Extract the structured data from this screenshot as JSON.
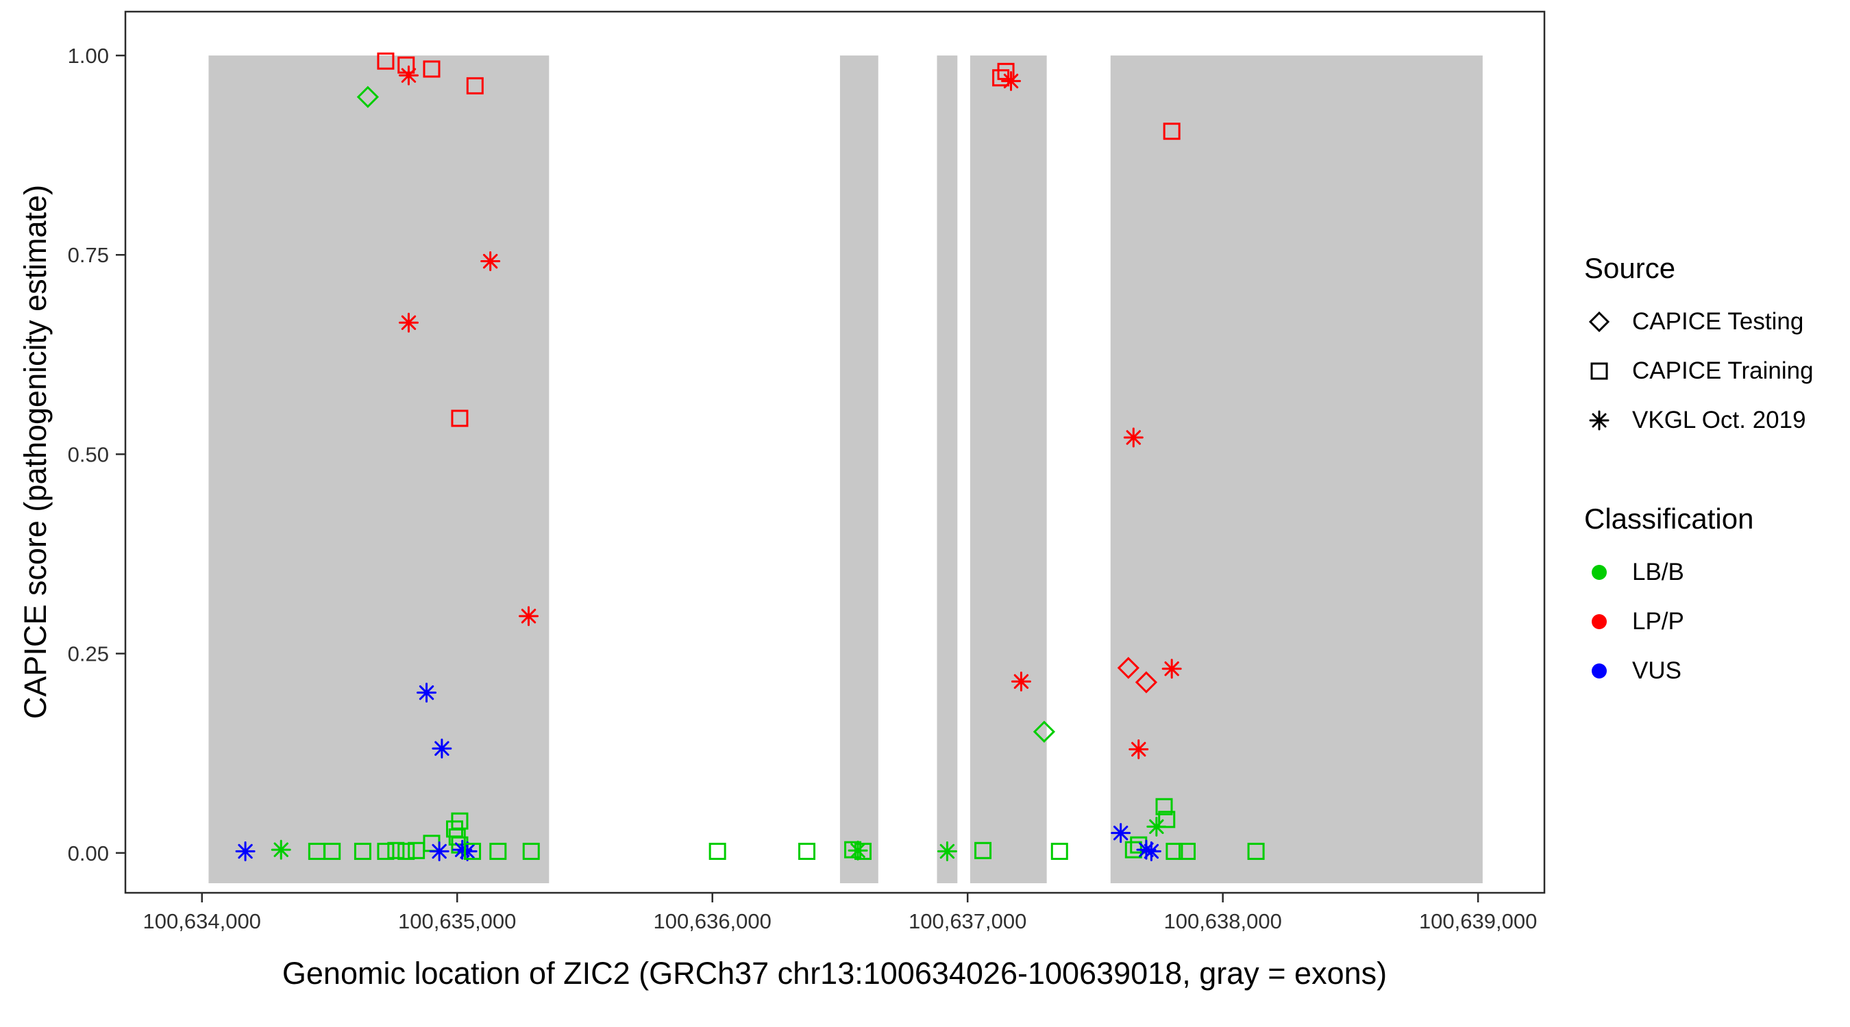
{
  "figure": {
    "x_axis_title": "Genomic location of ZIC2 (GRCh37 chr13:100634026-100639018, gray = exons)",
    "y_axis_title": "CAPICE score (pathogenicity estimate)"
  },
  "legend": {
    "source": {
      "title": "Source",
      "items": [
        {
          "label": "CAPICE Testing",
          "shape": "diamond"
        },
        {
          "label": "CAPICE Training",
          "shape": "square"
        },
        {
          "label": "VKGL Oct. 2019",
          "shape": "asterisk"
        }
      ]
    },
    "classification": {
      "title": "Classification",
      "items": [
        {
          "label": "LB/B",
          "color": "#00CD00"
        },
        {
          "label": "LP/P",
          "color": "#FF0000"
        },
        {
          "label": "VUS",
          "color": "#0000FF"
        }
      ]
    }
  },
  "chart_data": {
    "type": "scatter",
    "title": "",
    "xlabel": "Genomic location of ZIC2 (GRCh37 chr13:100634026-100639018, gray = exons)",
    "ylabel": "CAPICE score (pathogenicity estimate)",
    "xlim": [
      100633700,
      100639260
    ],
    "ylim": [
      -0.05,
      1.055
    ],
    "x_ticks": [
      100634000,
      100635000,
      100636000,
      100637000,
      100638000,
      100639000
    ],
    "x_tick_labels": [
      "100,634,000",
      "100,635,000",
      "100,636,000",
      "100,637,000",
      "100,638,000",
      "100,639,000"
    ],
    "y_ticks": [
      0,
      0.25,
      0.5,
      0.75,
      1.0
    ],
    "y_tick_labels": [
      "0.00",
      "0.25",
      "0.50",
      "0.75",
      "1.00"
    ],
    "grid": false,
    "legend_position": "right",
    "exon_color": "#C8C8C8",
    "exon_y_range": [
      -0.038,
      1.0
    ],
    "exons": [
      [
        100634026,
        100635360
      ],
      [
        100636500,
        100636650
      ],
      [
        100636880,
        100636960
      ],
      [
        100637010,
        100637310
      ],
      [
        100637560,
        100639018
      ]
    ],
    "colors": {
      "LB/B": "#00CD00",
      "LP/P": "#FF0000",
      "VUS": "#0000FF"
    },
    "shapes": {
      "CAPICE Testing": "diamond",
      "CAPICE Training": "square",
      "VKGL Oct. 2019": "asterisk"
    },
    "points": [
      {
        "x": 100634720,
        "y": 0.993,
        "source": "CAPICE Training",
        "class": "LP/P"
      },
      {
        "x": 100634800,
        "y": 0.988,
        "source": "CAPICE Training",
        "class": "LP/P"
      },
      {
        "x": 100634810,
        "y": 0.975,
        "source": "VKGL Oct. 2019",
        "class": "LP/P"
      },
      {
        "x": 100634900,
        "y": 0.983,
        "source": "CAPICE Training",
        "class": "LP/P"
      },
      {
        "x": 100635070,
        "y": 0.962,
        "source": "CAPICE Training",
        "class": "LP/P"
      },
      {
        "x": 100634650,
        "y": 0.948,
        "source": "CAPICE Testing",
        "class": "LB/B"
      },
      {
        "x": 100635130,
        "y": 0.742,
        "source": "VKGL Oct. 2019",
        "class": "LP/P"
      },
      {
        "x": 100634810,
        "y": 0.665,
        "source": "VKGL Oct. 2019",
        "class": "LP/P"
      },
      {
        "x": 100635010,
        "y": 0.545,
        "source": "CAPICE Training",
        "class": "LP/P"
      },
      {
        "x": 100635280,
        "y": 0.297,
        "source": "VKGL Oct. 2019",
        "class": "LP/P"
      },
      {
        "x": 100634880,
        "y": 0.201,
        "source": "VKGL Oct. 2019",
        "class": "VUS"
      },
      {
        "x": 100634940,
        "y": 0.131,
        "source": "VKGL Oct. 2019",
        "class": "VUS"
      },
      {
        "x": 100637150,
        "y": 0.98,
        "source": "CAPICE Training",
        "class": "LP/P"
      },
      {
        "x": 100637130,
        "y": 0.972,
        "source": "CAPICE Training",
        "class": "LP/P"
      },
      {
        "x": 100637170,
        "y": 0.968,
        "source": "VKGL Oct. 2019",
        "class": "LP/P"
      },
      {
        "x": 100637800,
        "y": 0.905,
        "source": "CAPICE Training",
        "class": "LP/P"
      },
      {
        "x": 100637650,
        "y": 0.521,
        "source": "VKGL Oct. 2019",
        "class": "LP/P"
      },
      {
        "x": 100637630,
        "y": 0.232,
        "source": "CAPICE Testing",
        "class": "LP/P"
      },
      {
        "x": 100637700,
        "y": 0.214,
        "source": "CAPICE Testing",
        "class": "LP/P"
      },
      {
        "x": 100637800,
        "y": 0.231,
        "source": "VKGL Oct. 2019",
        "class": "LP/P"
      },
      {
        "x": 100637210,
        "y": 0.215,
        "source": "VKGL Oct. 2019",
        "class": "LP/P"
      },
      {
        "x": 100637300,
        "y": 0.152,
        "source": "CAPICE Testing",
        "class": "LB/B"
      },
      {
        "x": 100637670,
        "y": 0.13,
        "source": "VKGL Oct. 2019",
        "class": "LP/P"
      },
      {
        "x": 100634170,
        "y": 0.002,
        "source": "VKGL Oct. 2019",
        "class": "VUS"
      },
      {
        "x": 100634310,
        "y": 0.004,
        "source": "VKGL Oct. 2019",
        "class": "LB/B"
      },
      {
        "x": 100634450,
        "y": 0.002,
        "source": "CAPICE Training",
        "class": "LB/B"
      },
      {
        "x": 100634510,
        "y": 0.002,
        "source": "CAPICE Training",
        "class": "LB/B"
      },
      {
        "x": 100634630,
        "y": 0.002,
        "source": "CAPICE Training",
        "class": "LB/B"
      },
      {
        "x": 100634720,
        "y": 0.002,
        "source": "CAPICE Training",
        "class": "LB/B"
      },
      {
        "x": 100634760,
        "y": 0.003,
        "source": "CAPICE Training",
        "class": "LB/B"
      },
      {
        "x": 100634800,
        "y": 0.002,
        "source": "CAPICE Training",
        "class": "LB/B"
      },
      {
        "x": 100634840,
        "y": 0.003,
        "source": "CAPICE Training",
        "class": "LB/B"
      },
      {
        "x": 100634900,
        "y": 0.012,
        "source": "CAPICE Training",
        "class": "LB/B"
      },
      {
        "x": 100634930,
        "y": 0.002,
        "source": "VKGL Oct. 2019",
        "class": "VUS"
      },
      {
        "x": 100634990,
        "y": 0.03,
        "source": "CAPICE Training",
        "class": "LB/B"
      },
      {
        "x": 100635000,
        "y": 0.02,
        "source": "CAPICE Training",
        "class": "LB/B"
      },
      {
        "x": 100635010,
        "y": 0.04,
        "source": "CAPICE Training",
        "class": "LB/B"
      },
      {
        "x": 100635010,
        "y": 0.01,
        "source": "CAPICE Training",
        "class": "LB/B"
      },
      {
        "x": 100635020,
        "y": 0.004,
        "source": "VKGL Oct. 2019",
        "class": "VUS"
      },
      {
        "x": 100635040,
        "y": 0.002,
        "source": "VKGL Oct. 2019",
        "class": "VUS"
      },
      {
        "x": 100635060,
        "y": 0.002,
        "source": "CAPICE Training",
        "class": "LB/B"
      },
      {
        "x": 100635160,
        "y": 0.002,
        "source": "CAPICE Training",
        "class": "LB/B"
      },
      {
        "x": 100635290,
        "y": 0.002,
        "source": "CAPICE Training",
        "class": "LB/B"
      },
      {
        "x": 100636020,
        "y": 0.002,
        "source": "CAPICE Training",
        "class": "LB/B"
      },
      {
        "x": 100636370,
        "y": 0.002,
        "source": "CAPICE Training",
        "class": "LB/B"
      },
      {
        "x": 100636550,
        "y": 0.004,
        "source": "CAPICE Training",
        "class": "LB/B"
      },
      {
        "x": 100636570,
        "y": 0.003,
        "source": "VKGL Oct. 2019",
        "class": "LB/B"
      },
      {
        "x": 100636590,
        "y": 0.002,
        "source": "CAPICE Training",
        "class": "LB/B"
      },
      {
        "x": 100636920,
        "y": 0.002,
        "source": "VKGL Oct. 2019",
        "class": "LB/B"
      },
      {
        "x": 100637060,
        "y": 0.003,
        "source": "CAPICE Training",
        "class": "LB/B"
      },
      {
        "x": 100637360,
        "y": 0.002,
        "source": "CAPICE Training",
        "class": "LB/B"
      },
      {
        "x": 100637600,
        "y": 0.025,
        "source": "VKGL Oct. 2019",
        "class": "VUS"
      },
      {
        "x": 100637650,
        "y": 0.004,
        "source": "CAPICE Training",
        "class": "LB/B"
      },
      {
        "x": 100637670,
        "y": 0.01,
        "source": "CAPICE Training",
        "class": "LB/B"
      },
      {
        "x": 100637740,
        "y": 0.033,
        "source": "VKGL Oct. 2019",
        "class": "LB/B"
      },
      {
        "x": 100637770,
        "y": 0.058,
        "source": "CAPICE Training",
        "class": "LB/B"
      },
      {
        "x": 100637780,
        "y": 0.042,
        "source": "CAPICE Training",
        "class": "LB/B"
      },
      {
        "x": 100637700,
        "y": 0.004,
        "source": "VKGL Oct. 2019",
        "class": "VUS"
      },
      {
        "x": 100637720,
        "y": 0.002,
        "source": "VKGL Oct. 2019",
        "class": "VUS"
      },
      {
        "x": 100637810,
        "y": 0.002,
        "source": "CAPICE Training",
        "class": "LB/B"
      },
      {
        "x": 100637860,
        "y": 0.002,
        "source": "CAPICE Training",
        "class": "LB/B"
      },
      {
        "x": 100638130,
        "y": 0.002,
        "source": "CAPICE Training",
        "class": "LB/B"
      }
    ]
  }
}
